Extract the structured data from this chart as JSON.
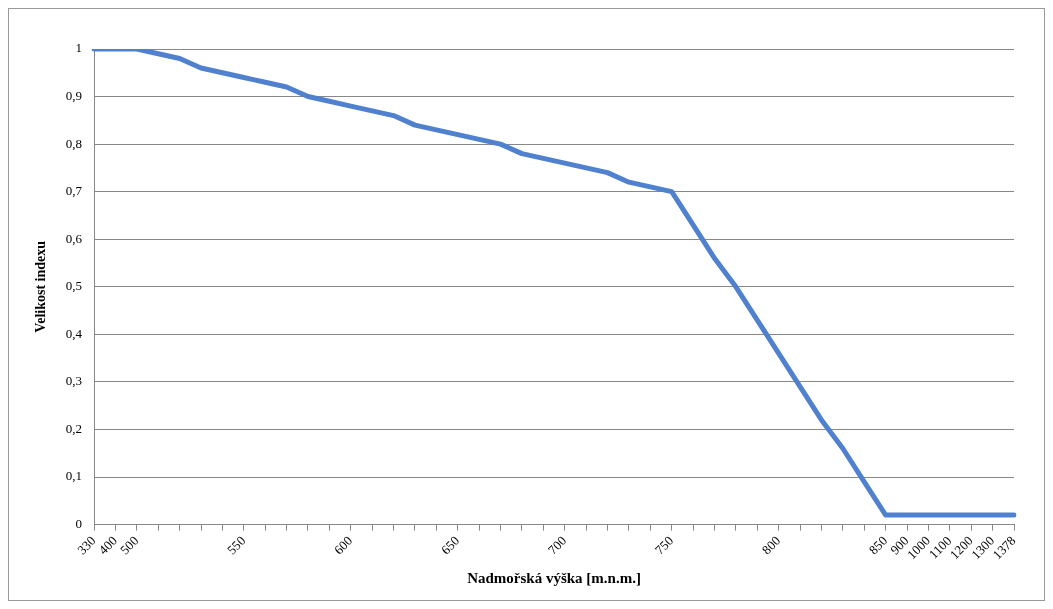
{
  "chart_data": {
    "type": "line",
    "xlabel": "Nadmořská výška [m.n.m.]",
    "ylabel": "Velikost indexu",
    "categories": [
      "330",
      "400",
      "500",
      null,
      null,
      null,
      null,
      "550",
      null,
      null,
      null,
      null,
      "600",
      null,
      null,
      null,
      null,
      "650",
      null,
      null,
      null,
      null,
      "700",
      null,
      null,
      null,
      null,
      "750",
      null,
      null,
      null,
      null,
      "800",
      null,
      null,
      null,
      null,
      "850",
      "900",
      "1000",
      "1100",
      "1200",
      "1300",
      "1378"
    ],
    "series": [
      {
        "color": "#4f81cf",
        "values": [
          1,
          1,
          1,
          0.99,
          0.98,
          0.96,
          0.95,
          0.94,
          0.93,
          0.92,
          0.9,
          0.89,
          0.88,
          0.87,
          0.86,
          0.84,
          0.83,
          0.82,
          0.81,
          0.8,
          0.78,
          0.77,
          0.76,
          0.75,
          0.74,
          0.72,
          0.71,
          0.7,
          0.63,
          0.56,
          0.5,
          0.43,
          0.36,
          0.29,
          0.22,
          0.16,
          0.09,
          0.02,
          0.02,
          0.02,
          0.02,
          0.02,
          0.02,
          0.02
        ]
      }
    ],
    "ylim": [
      0,
      1
    ],
    "yticks": [
      0,
      {
        "value": 0.1,
        "label": "0,1"
      },
      {
        "value": 0.2,
        "label": "0,2"
      },
      {
        "value": 0.3,
        "label": "0,3"
      },
      {
        "value": 0.4,
        "label": "0,4"
      },
      {
        "value": 0.5,
        "label": "0,5"
      },
      {
        "value": 0.6,
        "label": "0,6"
      },
      {
        "value": 0.7,
        "label": "0,7"
      },
      {
        "value": 0.8,
        "label": "0,8"
      },
      {
        "value": 0.9,
        "label": "0,9"
      },
      1
    ],
    "grid": "y",
    "legend": false,
    "marker": "none",
    "line_style": "solid"
  }
}
